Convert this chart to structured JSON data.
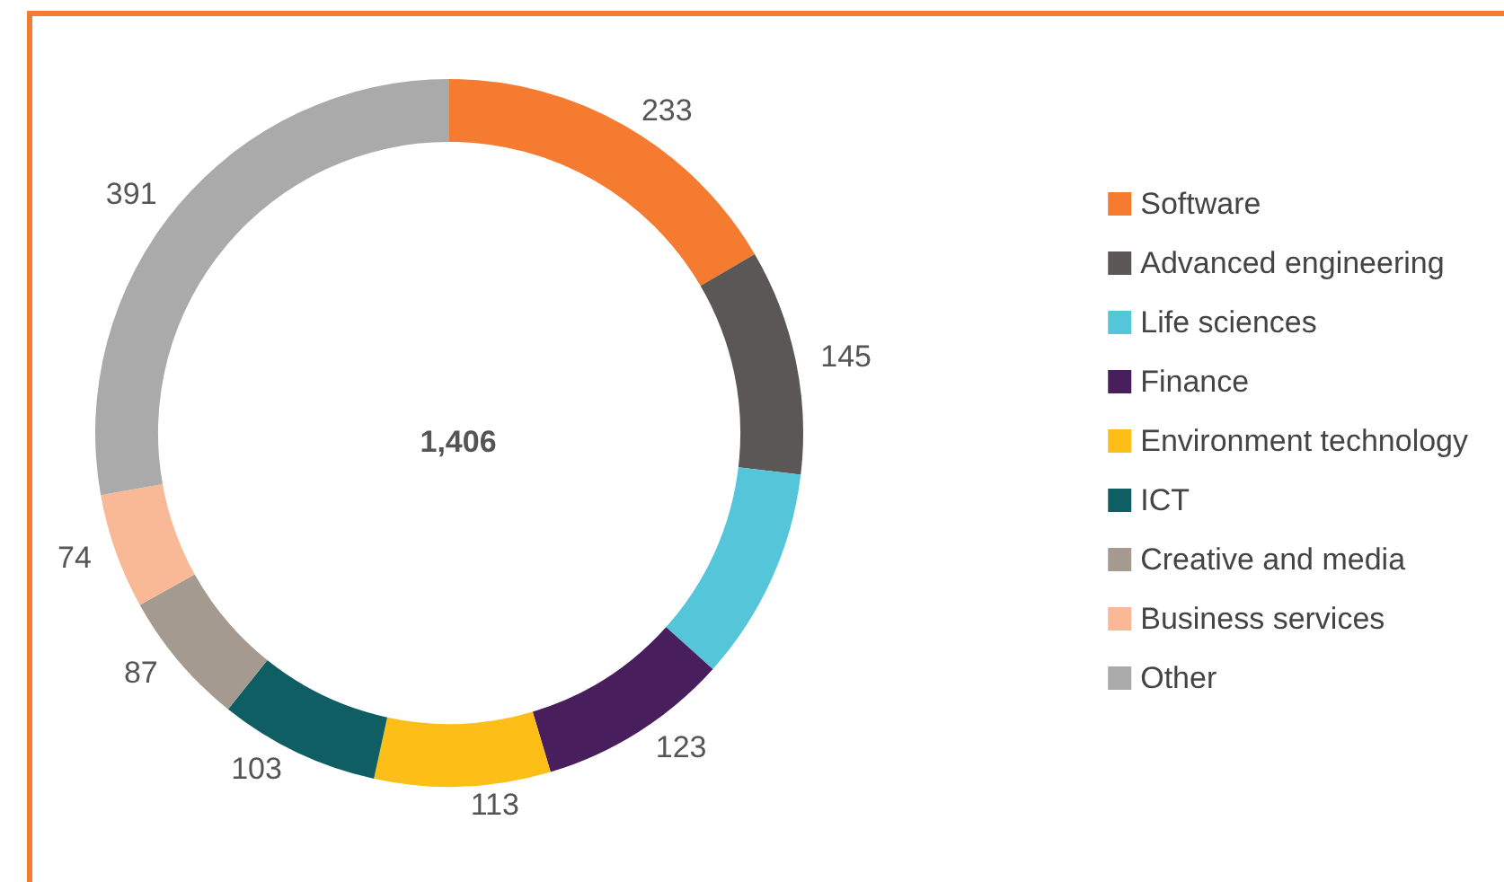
{
  "chart_data": {
    "type": "donut",
    "categories": [
      "Software",
      "Advanced engineering",
      "Life sciences",
      "Finance",
      "Environment technology",
      "ICT",
      "Creative and media",
      "Business services",
      "Other"
    ],
    "values": [
      233,
      145,
      137,
      123,
      113,
      103,
      87,
      74,
      391
    ],
    "value_labels": [
      "233",
      "145",
      null,
      "123",
      "113",
      "103",
      "87",
      "74",
      "391"
    ],
    "colors": [
      "#f47b30",
      "#5a5756",
      "#55c6da",
      "#481e5c",
      "#fdbf17",
      "#0f5e63",
      "#a59a90",
      "#f9b996",
      "#aaaaaa"
    ],
    "annotations": [
      "1,406"
    ],
    "legend": "right"
  }
}
